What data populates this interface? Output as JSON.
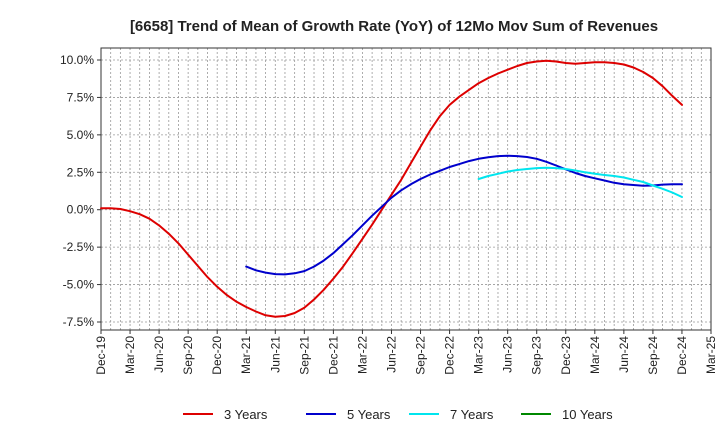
{
  "chart_data": {
    "type": "line",
    "title": "[6658]  Trend of Mean of Growth Rate (YoY) of 12Mo Mov Sum of Revenues",
    "xlabel": "",
    "ylabel": "",
    "ylim": [
      -0.08,
      0.1
    ],
    "grid": true,
    "legend_position": "bottom",
    "x_ticks": [
      "Dec-19",
      "Mar-20",
      "Jun-20",
      "Sep-20",
      "Dec-20",
      "Mar-21",
      "Jun-21",
      "Sep-21",
      "Dec-21",
      "Mar-22",
      "Jun-22",
      "Sep-22",
      "Dec-22",
      "Mar-23",
      "Jun-23",
      "Sep-23",
      "Dec-23",
      "Mar-24",
      "Jun-24",
      "Sep-24",
      "Dec-24",
      "Mar-25"
    ],
    "y_ticks": [
      0.1,
      0.075,
      0.05,
      0.025,
      0.0,
      -0.025,
      -0.05,
      -0.075
    ],
    "y_tick_labels": [
      "10.0%",
      "7.5%",
      "5.0%",
      "2.5%",
      "0.0%",
      "-2.5%",
      "-5.0%",
      "-7.5%"
    ],
    "series": [
      {
        "name": "3 Years",
        "color": "#dd0000",
        "x": [
          0,
          1,
          2,
          3,
          4,
          5,
          6,
          7,
          8,
          9,
          10,
          11,
          12,
          13,
          14,
          15,
          16,
          17,
          18,
          19,
          20,
          21,
          22,
          23,
          24,
          25,
          26,
          27,
          28,
          29,
          30,
          31,
          32,
          33,
          34,
          35,
          36,
          37,
          38,
          39,
          40,
          41,
          42,
          43,
          44,
          45,
          46,
          47,
          48,
          49,
          50,
          51,
          52,
          53,
          54,
          55,
          56,
          57,
          58,
          59,
          60
        ],
        "values": [
          0.001,
          0.001,
          0.0005,
          -0.001,
          -0.003,
          -0.006,
          -0.0105,
          -0.016,
          -0.0225,
          -0.03,
          -0.0375,
          -0.045,
          -0.0515,
          -0.057,
          -0.0615,
          -0.065,
          -0.068,
          -0.0705,
          -0.0715,
          -0.071,
          -0.069,
          -0.0655,
          -0.06,
          -0.0535,
          -0.046,
          -0.038,
          -0.029,
          -0.0195,
          -0.01,
          0.0,
          0.01,
          0.02,
          0.031,
          0.042,
          0.053,
          0.0625,
          0.07,
          0.0755,
          0.08,
          0.0845,
          0.088,
          0.091,
          0.0935,
          0.096,
          0.098,
          0.099,
          0.0995,
          0.099,
          0.098,
          0.0975,
          0.098,
          0.0985,
          0.0985,
          0.098,
          0.097,
          0.095,
          0.092,
          0.088,
          0.0825,
          0.076,
          0.07
        ]
      },
      {
        "name": "5 Years",
        "color": "#0000cc",
        "x": [
          15,
          16,
          17,
          18,
          19,
          20,
          21,
          22,
          23,
          24,
          25,
          26,
          27,
          28,
          29,
          30,
          31,
          32,
          33,
          34,
          35,
          36,
          37,
          38,
          39,
          40,
          41,
          42,
          43,
          44,
          45,
          46,
          47,
          48,
          49,
          50,
          51,
          52,
          53,
          54,
          55,
          56,
          57,
          58,
          59,
          60
        ],
        "values": [
          -0.038,
          -0.0405,
          -0.042,
          -0.043,
          -0.0432,
          -0.0425,
          -0.041,
          -0.038,
          -0.034,
          -0.029,
          -0.023,
          -0.017,
          -0.0105,
          -0.004,
          0.002,
          0.008,
          0.013,
          0.017,
          0.0205,
          0.0235,
          0.026,
          0.0285,
          0.0305,
          0.0325,
          0.034,
          0.035,
          0.0358,
          0.036,
          0.0358,
          0.0352,
          0.034,
          0.032,
          0.0295,
          0.027,
          0.0245,
          0.0225,
          0.021,
          0.0195,
          0.018,
          0.017,
          0.0165,
          0.016,
          0.0162,
          0.0168,
          0.017,
          0.017
        ]
      },
      {
        "name": "7 Years",
        "color": "#00e5ee",
        "x": [
          39,
          40,
          41,
          42,
          43,
          44,
          45,
          46,
          47,
          48,
          49,
          50,
          51,
          52,
          53,
          54,
          55,
          56,
          57,
          58,
          59,
          60
        ],
        "values": [
          0.0205,
          0.0225,
          0.024,
          0.0255,
          0.0265,
          0.0272,
          0.0278,
          0.028,
          0.0278,
          0.0272,
          0.0262,
          0.025,
          0.024,
          0.0232,
          0.0225,
          0.0215,
          0.02,
          0.0185,
          0.0162,
          0.014,
          0.0115,
          0.0085
        ]
      },
      {
        "name": "10 Years",
        "color": "#008800",
        "x": [],
        "values": []
      }
    ]
  }
}
